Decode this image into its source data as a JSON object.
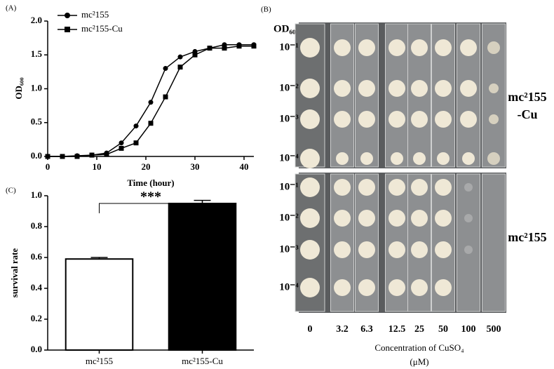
{
  "chart_data": [
    {
      "type": "line",
      "panel_label": "(A)",
      "xlabel": "Time (hour)",
      "ylabel": "OD₆₀₀",
      "x": [
        0,
        3,
        6,
        9,
        12,
        15,
        18,
        21,
        24,
        27,
        30,
        33,
        36,
        39,
        42
      ],
      "series": [
        {
          "name": "mc²155",
          "color": "#000000",
          "marker": "circle",
          "values": [
            0,
            0,
            0.01,
            0.02,
            0.05,
            0.2,
            0.45,
            0.8,
            1.3,
            1.47,
            1.55,
            1.6,
            1.65,
            1.65,
            1.65
          ]
        },
        {
          "name": "mc²155-Cu",
          "color": "#000000",
          "marker": "square",
          "values": [
            0,
            0,
            0,
            0.02,
            0.03,
            0.12,
            0.2,
            0.49,
            0.88,
            1.32,
            1.5,
            1.6,
            1.6,
            1.63,
            1.63
          ]
        }
      ],
      "xlim": [
        0,
        42
      ],
      "xticks": [
        0,
        10,
        20,
        30,
        40
      ],
      "ylim": [
        0,
        2.0
      ],
      "yticks": [
        {
          "value": 0,
          "label": "0.0"
        },
        0.5,
        {
          "value": 1,
          "label": "1.0"
        },
        1.5,
        {
          "value": 2,
          "label": "2.0"
        }
      ],
      "legend": "upper left"
    },
    {
      "type": "bar",
      "panel_label": "(C)",
      "ylabel": "survival rate",
      "annotation": "***",
      "categories": [
        "mc²155",
        "mc²155-Cu"
      ],
      "values": [
        0.59,
        0.95
      ],
      "errors": [
        0.01,
        0.02
      ],
      "colors": [
        "#ffffff",
        "#000000"
      ],
      "ylim": [
        0,
        1.0
      ],
      "yticks": [
        {
          "value": 0,
          "label": "0.0"
        },
        0.2,
        0.4,
        0.6,
        0.8,
        {
          "value": 1,
          "label": "1.0"
        }
      ]
    }
  ],
  "image_panel": {
    "panel_label": "(B)",
    "od_label": "OD₆₀₀",
    "dilutions": [
      "10⁻¹",
      "10⁻²",
      "10⁻³",
      "10⁻⁴"
    ],
    "strains": [
      [
        "mc²155",
        "-Cu"
      ],
      [
        "mc²155"
      ]
    ],
    "concentrations": [
      "0",
      "3.2",
      "6.3",
      "12.5",
      "25",
      "50",
      "100",
      "500"
    ],
    "xlabel": [
      "Concentration of CuSO₄",
      "(μM)"
    ]
  }
}
